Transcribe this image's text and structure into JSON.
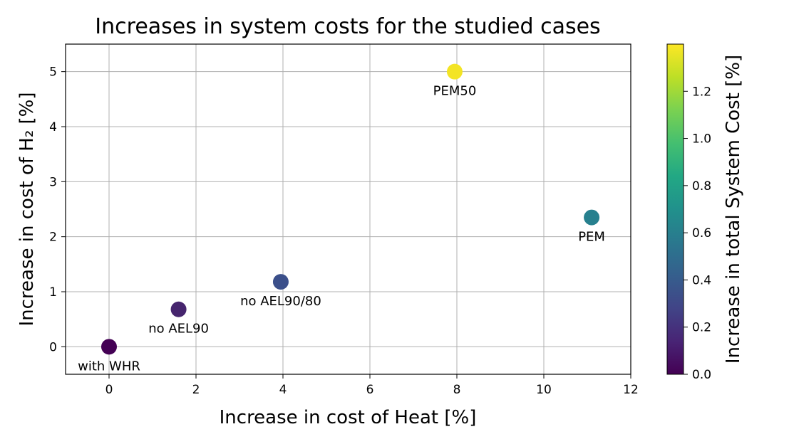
{
  "chart_data": {
    "type": "scatter",
    "title": "Increases in system costs for the studied cases",
    "xlabel": "Increase in cost of Heat [%]",
    "ylabel": "Increase in cost of H₂ [%]",
    "xlim": [
      -1,
      12
    ],
    "ylim": [
      -0.5,
      5.5
    ],
    "xticks": [
      0,
      2,
      4,
      6,
      8,
      10,
      12
    ],
    "yticks": [
      0,
      1,
      2,
      3,
      4,
      5
    ],
    "grid": true,
    "colorbar": {
      "label": "Increase in total System Cost [%]",
      "colormap": "viridis",
      "range": [
        0,
        1.4
      ],
      "ticks": [
        "0.0",
        "0.2",
        "0.4",
        "0.6",
        "0.8",
        "1.0",
        "1.2"
      ]
    },
    "points": [
      {
        "label": "with WHR",
        "x": 0,
        "y": 0,
        "c": 0.0,
        "color": "#440154"
      },
      {
        "label": "no AEL90",
        "x": 1.6,
        "y": 0.68,
        "c": 0.15,
        "color": "#46256e"
      },
      {
        "label": "no AEL90/80",
        "x": 3.95,
        "y": 1.18,
        "c": 0.32,
        "color": "#3b4f8a"
      },
      {
        "label": "PEM50",
        "x": 7.95,
        "y": 5.0,
        "c": 1.38,
        "color": "#f3e425"
      },
      {
        "label": "PEM",
        "x": 11.1,
        "y": 2.35,
        "c": 0.68,
        "color": "#27808e"
      }
    ]
  }
}
